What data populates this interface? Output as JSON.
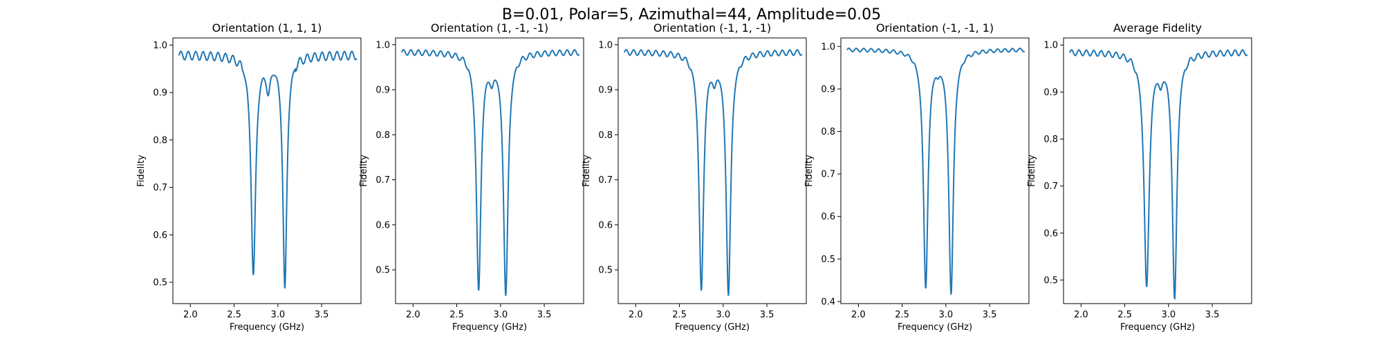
{
  "figure": {
    "suptitle": "B=0.01, Polar=5, Azimuthal=44, Amplitude=0.05"
  },
  "chart_data": [
    {
      "type": "line",
      "title": "Orientation (1, 1, 1)",
      "xlabel": "Frequency (GHz)",
      "ylabel": "Fidelity",
      "xlim": [
        1.8,
        3.95
      ],
      "ylim": [
        0.455,
        1.015
      ],
      "xticks": [
        2.0,
        2.5,
        3.0,
        3.5
      ],
      "yticks": [
        0.5,
        0.6,
        0.7,
        0.8,
        0.9,
        1.0
      ],
      "color": "#1f77b4",
      "dips": [
        {
          "center": 2.72,
          "depth": 0.46,
          "width": 0.04
        },
        {
          "center": 3.08,
          "depth": 0.49,
          "width": 0.035
        },
        {
          "center": 2.89,
          "depth": 0.06,
          "width": 0.035
        }
      ],
      "baseline": 0.979,
      "ripple": {
        "amplitude": 0.009,
        "period": 0.085,
        "start": 1.87,
        "end": 3.9
      }
    },
    {
      "type": "line",
      "title": "Orientation (1, -1, -1)",
      "xlabel": "Frequency (GHz)",
      "ylabel": "Fidelity",
      "xlim": [
        1.8,
        3.95
      ],
      "ylim": [
        0.425,
        1.015
      ],
      "xticks": [
        2.0,
        2.5,
        3.0,
        3.5
      ],
      "yticks": [
        0.5,
        0.6,
        0.7,
        0.8,
        0.9,
        1.0
      ],
      "color": "#1f77b4",
      "dips": [
        {
          "center": 2.75,
          "depth": 0.525,
          "width": 0.04
        },
        {
          "center": 3.06,
          "depth": 0.535,
          "width": 0.04
        },
        {
          "center": 2.9,
          "depth": 0.04,
          "width": 0.035
        }
      ],
      "baseline": 0.984,
      "ripple": {
        "amplitude": 0.006,
        "period": 0.085,
        "start": 1.87,
        "end": 3.9
      }
    },
    {
      "type": "line",
      "title": "Orientation (-1, 1, -1)",
      "xlabel": "Frequency (GHz)",
      "ylabel": "Fidelity",
      "xlim": [
        1.8,
        3.95
      ],
      "ylim": [
        0.425,
        1.015
      ],
      "xticks": [
        2.0,
        2.5,
        3.0,
        3.5
      ],
      "yticks": [
        0.5,
        0.6,
        0.7,
        0.8,
        0.9,
        1.0
      ],
      "color": "#1f77b4",
      "dips": [
        {
          "center": 2.75,
          "depth": 0.525,
          "width": 0.04
        },
        {
          "center": 3.06,
          "depth": 0.535,
          "width": 0.04
        },
        {
          "center": 2.9,
          "depth": 0.04,
          "width": 0.035
        }
      ],
      "baseline": 0.984,
      "ripple": {
        "amplitude": 0.006,
        "period": 0.085,
        "start": 1.87,
        "end": 3.9
      }
    },
    {
      "type": "line",
      "title": "Orientation (-1, -1, 1)",
      "xlabel": "Frequency (GHz)",
      "ylabel": "Fidelity",
      "xlim": [
        1.8,
        3.95
      ],
      "ylim": [
        0.395,
        1.02
      ],
      "xticks": [
        2.0,
        2.5,
        3.0,
        3.5
      ],
      "yticks": [
        0.4,
        0.5,
        0.6,
        0.7,
        0.8,
        0.9,
        1.0
      ],
      "color": "#1f77b4",
      "dips": [
        {
          "center": 2.77,
          "depth": 0.555,
          "width": 0.04
        },
        {
          "center": 3.06,
          "depth": 0.57,
          "width": 0.04
        },
        {
          "center": 2.91,
          "depth": 0.02,
          "width": 0.03
        }
      ],
      "baseline": 0.993,
      "ripple": {
        "amplitude": 0.004,
        "period": 0.085,
        "start": 1.87,
        "end": 3.9
      }
    },
    {
      "type": "line",
      "title": "Average Fidelity",
      "xlabel": "Frequency (GHz)",
      "ylabel": "Fidelity",
      "xlim": [
        1.8,
        3.95
      ],
      "ylim": [
        0.45,
        1.015
      ],
      "xticks": [
        2.0,
        2.5,
        3.0,
        3.5
      ],
      "yticks": [
        0.5,
        0.6,
        0.7,
        0.8,
        0.9,
        1.0
      ],
      "color": "#1f77b4",
      "dips": [
        {
          "center": 2.75,
          "depth": 0.495,
          "width": 0.045
        },
        {
          "center": 3.07,
          "depth": 0.52,
          "width": 0.04
        },
        {
          "center": 2.91,
          "depth": 0.04,
          "width": 0.035
        }
      ],
      "baseline": 0.985,
      "ripple": {
        "amplitude": 0.006,
        "period": 0.085,
        "start": 1.87,
        "end": 3.9
      }
    }
  ]
}
